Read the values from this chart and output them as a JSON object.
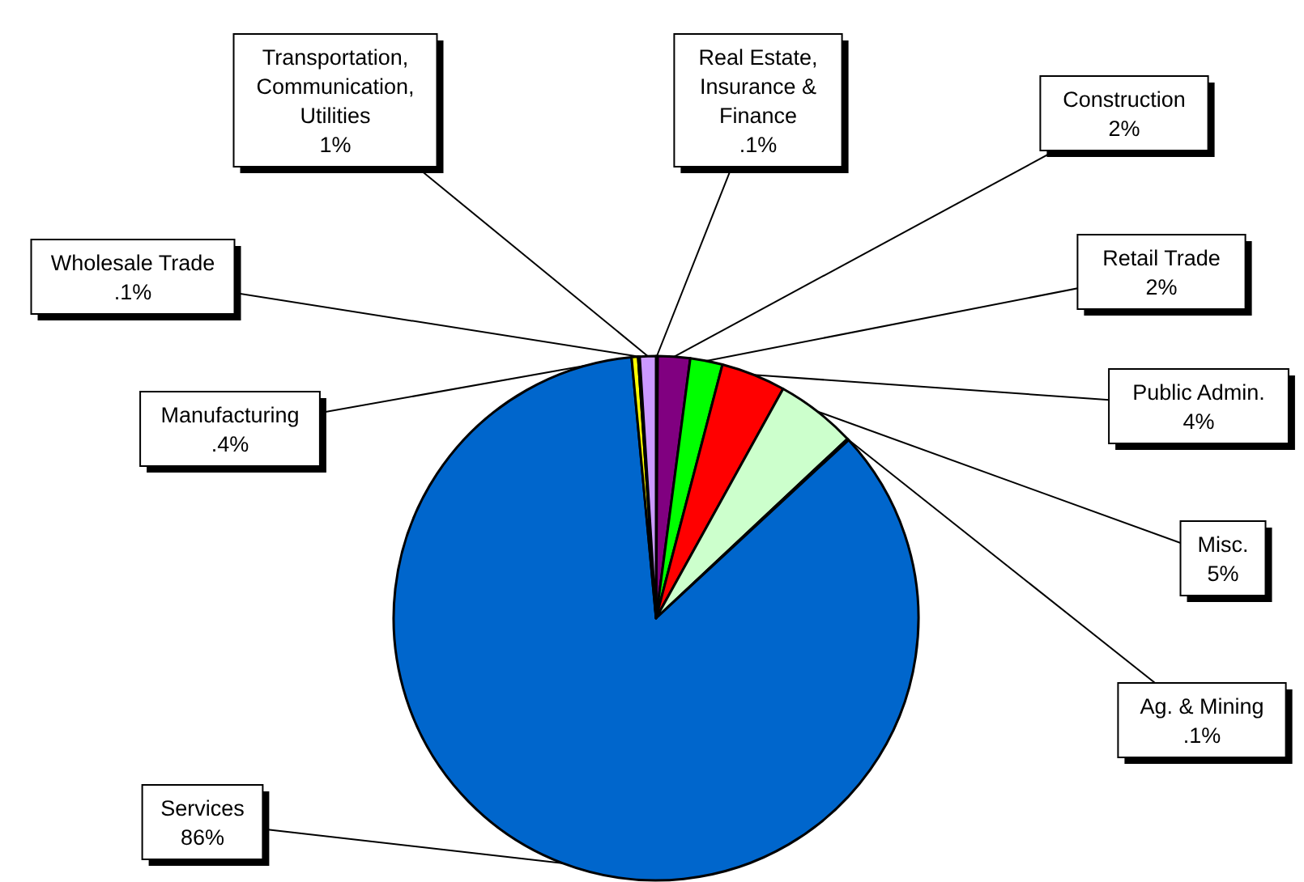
{
  "chart_data": {
    "type": "pie",
    "categories": [
      "Real Estate, Insurance & Finance",
      "Construction",
      "Retail Trade",
      "Public Admin.",
      "Misc.",
      "Ag. & Mining",
      "Services",
      "Manufacturing",
      "Wholesale Trade",
      "Transportation, Communication, Utilities"
    ],
    "values": [
      0.1,
      2,
      2,
      4,
      5,
      0.1,
      86,
      0.4,
      0.1,
      1
    ],
    "value_labels": [
      ".1%",
      "2%",
      "2%",
      "4%",
      "5%",
      ".1%",
      "86%",
      ".4%",
      ".1%",
      "1%"
    ],
    "colors": [
      "#00ffff",
      "#800080",
      "#00ff00",
      "#ff0000",
      "#ccffcc",
      "#ff00ff",
      "#0066cc",
      "#ffff00",
      "#ff9900",
      "#cc99ff"
    ]
  }
}
